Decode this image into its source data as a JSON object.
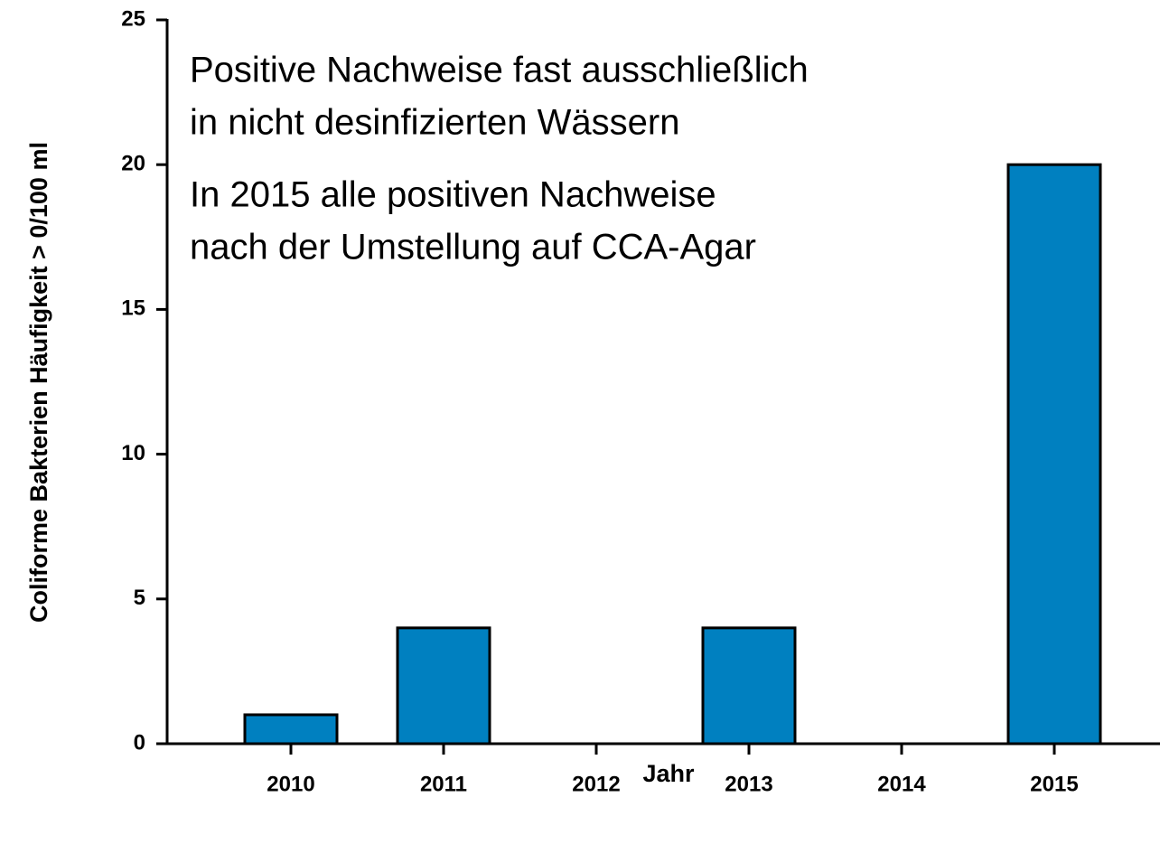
{
  "chart_data": {
    "type": "bar",
    "annotations": [
      "Positive Nachweise fast ausschließlich",
      "in nicht desinfizierten Wässern",
      "In 2015 alle positiven Nachweise",
      "nach der Umstellung auf CCA-Agar"
    ],
    "x_label": "Jahr",
    "y_label": "Coliforme Bakterien Häufigkeit > 0/100 ml",
    "categories": [
      "2010",
      "2011",
      "2012",
      "2013",
      "2014",
      "2015"
    ],
    "values": [
      1,
      4,
      0,
      4,
      0,
      20
    ],
    "color": "#0080c0",
    "ylim": [
      0,
      25
    ],
    "yticks": [
      0,
      5,
      10,
      15,
      20,
      25
    ],
    "grid": false
  }
}
